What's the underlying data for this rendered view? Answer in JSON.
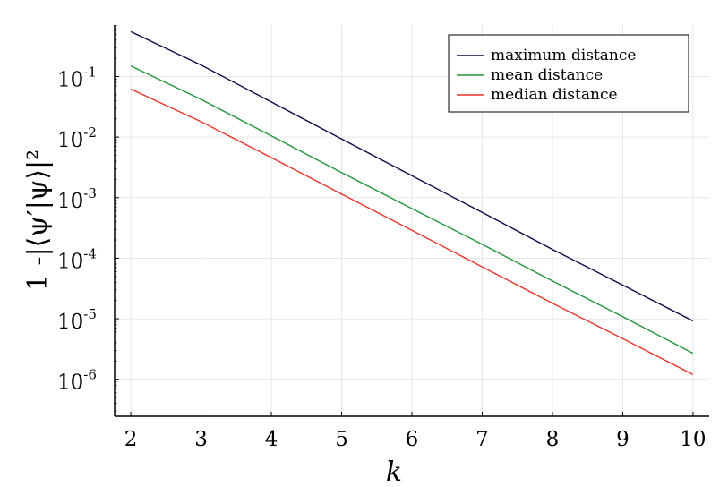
{
  "chart_data": {
    "type": "line",
    "title": "",
    "xlabel": "k",
    "ylabel": "1 -|⟨ψ′|ψ⟩|²",
    "yscale": "log",
    "xlim": [
      1.77,
      10.23
    ],
    "ylim_log10": [
      -6.61,
      -0.15
    ],
    "grid": true,
    "legend_position": "top-right",
    "x": [
      2,
      3,
      4,
      5,
      6,
      7,
      8,
      9,
      10
    ],
    "x_ticks": [
      "2",
      "3",
      "4",
      "5",
      "6",
      "7",
      "8",
      "9",
      "10"
    ],
    "y_ticks": [
      {
        "base": "10",
        "exp": "-1",
        "log10": -1
      },
      {
        "base": "10",
        "exp": "-2",
        "log10": -2
      },
      {
        "base": "10",
        "exp": "-3",
        "log10": -3
      },
      {
        "base": "10",
        "exp": "-4",
        "log10": -4
      },
      {
        "base": "10",
        "exp": "-5",
        "log10": -5
      },
      {
        "base": "10",
        "exp": "-6",
        "log10": -6
      }
    ],
    "series": [
      {
        "name": "maximum distance",
        "color": "#0a0a4a",
        "values": [
          0.55,
          0.155,
          0.038,
          0.0093,
          0.0023,
          0.00057,
          0.00014,
          3.6e-05,
          9.2e-06
        ]
      },
      {
        "name": "mean distance",
        "color": "#22963a",
        "values": [
          0.15,
          0.042,
          0.0105,
          0.0026,
          0.00066,
          0.00017,
          4.2e-05,
          1.08e-05,
          2.7e-06
        ]
      },
      {
        "name": "median distance",
        "color": "#e8342a",
        "values": [
          0.062,
          0.018,
          0.0046,
          0.00115,
          0.00029,
          7.2e-05,
          1.8e-05,
          4.7e-06,
          1.2e-06
        ]
      }
    ]
  }
}
